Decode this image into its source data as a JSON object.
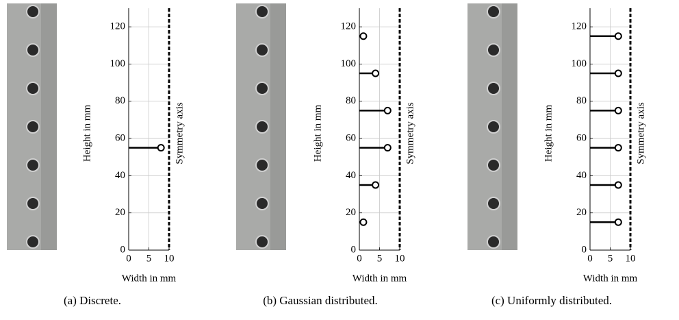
{
  "chart_data": [
    {
      "type": "lollipop",
      "caption": "(a) Discrete.",
      "xlabel": "Width in mm",
      "ylabel": "Height in mm",
      "annotation": "Symmetry axis",
      "xlim": [
        0,
        10
      ],
      "xticks": [
        0,
        5,
        10
      ],
      "ylim": [
        0,
        130
      ],
      "yticks": [
        0,
        20,
        40,
        60,
        80,
        100,
        120
      ],
      "grid": true,
      "color": "#000000",
      "x": [
        8
      ],
      "values": [
        55
      ]
    },
    {
      "type": "lollipop",
      "caption": "(b) Gaussian distributed.",
      "xlabel": "Width in mm",
      "ylabel": "Height in mm",
      "annotation": "Symmetry axis",
      "xlim": [
        0,
        10
      ],
      "xticks": [
        0,
        5,
        10
      ],
      "ylim": [
        0,
        130
      ],
      "yticks": [
        0,
        20,
        40,
        60,
        80,
        100,
        120
      ],
      "grid": true,
      "color": "#000000",
      "x": [
        1,
        4,
        7,
        7,
        4,
        1
      ],
      "values": [
        15,
        35,
        55,
        75,
        95,
        115
      ]
    },
    {
      "type": "lollipop",
      "caption": "(c) Uniformly distributed.",
      "xlabel": "Width in mm",
      "ylabel": "Height in mm",
      "annotation": "Symmetry axis",
      "xlim": [
        0,
        10
      ],
      "xticks": [
        0,
        5,
        10
      ],
      "ylim": [
        0,
        130
      ],
      "yticks": [
        0,
        20,
        40,
        60,
        80,
        100,
        120
      ],
      "grid": true,
      "color": "#000000",
      "x": [
        7,
        7,
        7,
        7,
        7,
        7
      ],
      "values": [
        15,
        35,
        55,
        75,
        95,
        115
      ]
    }
  ]
}
